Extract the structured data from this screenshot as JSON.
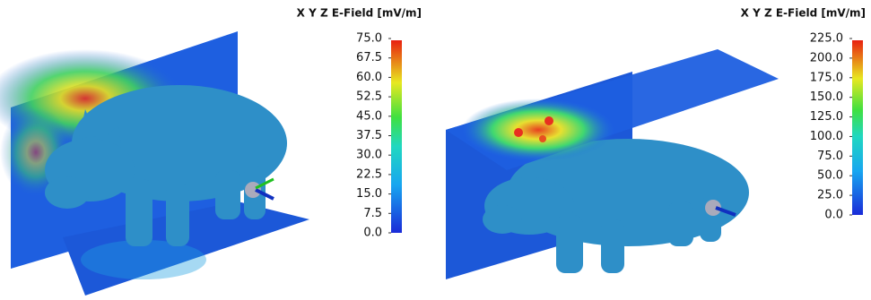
{
  "panels": [
    {
      "colorbar": {
        "title": "X Y Z E-Field [mV/m]",
        "lim": [
          0,
          75
        ],
        "ticks": [
          {
            "value": 75,
            "label": "75.0"
          },
          {
            "value": 67.5,
            "label": "67.5"
          },
          {
            "value": 60,
            "label": "60.0"
          },
          {
            "value": 52.5,
            "label": "52.5"
          },
          {
            "value": 45,
            "label": "45.0"
          },
          {
            "value": 37.5,
            "label": "37.5"
          },
          {
            "value": 30,
            "label": "30.0"
          },
          {
            "value": 22.5,
            "label": "22.5"
          },
          {
            "value": 15,
            "label": "15.0"
          },
          {
            "value": 7.5,
            "label": "7.5"
          },
          {
            "value": 0,
            "label": "0.0"
          }
        ]
      }
    },
    {
      "colorbar": {
        "title": "X Y Z E-Field [mV/m]",
        "lim": [
          0,
          225
        ],
        "ticks": [
          {
            "value": 225,
            "label": "225.0"
          },
          {
            "value": 200,
            "label": "200.0"
          },
          {
            "value": 175,
            "label": "175.0"
          },
          {
            "value": 150,
            "label": "150.0"
          },
          {
            "value": 125,
            "label": "125.0"
          },
          {
            "value": 100,
            "label": "100.0"
          },
          {
            "value": 75,
            "label": "75.0"
          },
          {
            "value": 50,
            "label": "50.0"
          },
          {
            "value": 25,
            "label": "25.0"
          },
          {
            "value": 0,
            "label": "0.0"
          }
        ]
      }
    }
  ]
}
